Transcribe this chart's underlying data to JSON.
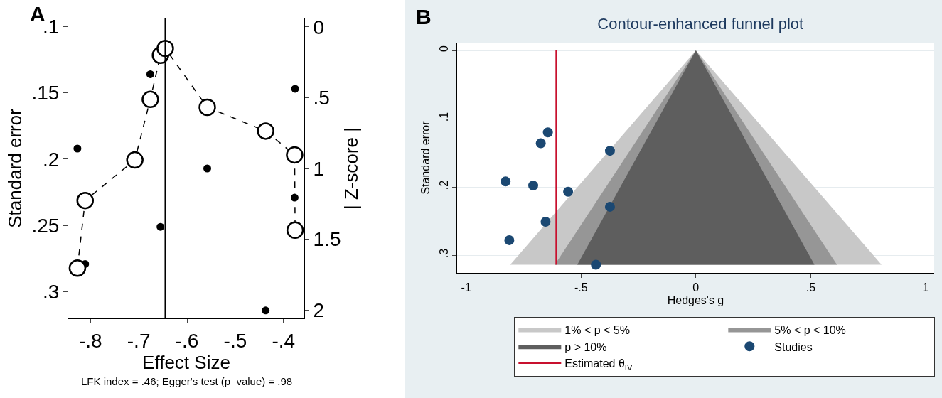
{
  "chart_data": [
    {
      "type": "scatter",
      "xlabel": "Effect Size",
      "ylabel": "Standard error",
      "y2label": "| Z-score |",
      "annotations": [
        "A",
        "LFK index = .46; Egger's test (p_value) = .98"
      ],
      "xlim": [
        -0.846,
        -0.357
      ],
      "xticks": [
        {
          "value": -0.8,
          "label": "-.8"
        },
        {
          "value": -0.7,
          "label": "-.7"
        },
        {
          "value": -0.6,
          "label": "-.6"
        },
        {
          "value": -0.5,
          "label": "-.5"
        },
        {
          "value": -0.4,
          "label": "-.4"
        }
      ],
      "ylim": [
        0.32,
        0.094
      ],
      "yticks": [
        {
          "value": 0.1,
          "label": ".1"
        },
        {
          "value": 0.15,
          "label": ".15"
        },
        {
          "value": 0.2,
          "label": ".2"
        },
        {
          "value": 0.25,
          "label": ".25"
        },
        {
          "value": 0.3,
          "label": ".3"
        }
      ],
      "y2lim": [
        2.06,
        -0.06
      ],
      "y2ticks": [
        0,
        {
          "value": 0.5,
          "label": ".5"
        },
        1,
        1.5,
        2
      ],
      "grid": false,
      "legend": false,
      "ref_lines": [
        {
          "axis": "x",
          "value": -0.645,
          "color": "#000000"
        }
      ],
      "series": [
        {
          "type": "scatter",
          "color": "#000000",
          "marker": "circle",
          "x": [
            -0.827,
            -0.676,
            -0.376,
            -0.558,
            -0.377,
            -0.655,
            -0.811,
            -0.437
          ],
          "values": [
            0.192,
            0.136,
            0.147,
            0.207,
            0.229,
            0.251,
            0.279,
            0.314
          ]
        },
        {
          "type": "line",
          "axis": "y2",
          "color": "#000000",
          "marker": "circle",
          "line_style": "dashed",
          "x": [
            -0.827,
            -0.811,
            -0.708,
            -0.676,
            -0.655,
            -0.645,
            -0.558,
            -0.437,
            -0.377,
            -0.376
          ],
          "values": [
            1.705,
            1.227,
            0.94,
            0.512,
            0.2,
            0.152,
            0.568,
            0.736,
            0.904,
            1.436
          ]
        }
      ]
    },
    {
      "type": "scatter",
      "title": "Contour-enhanced funnel plot",
      "xlabel": "Hedges's g",
      "ylabel": "Standard error",
      "annotations": [
        "B"
      ],
      "xlim": [
        -1.039,
        1.037
      ],
      "xticks": [
        -1,
        {
          "value": -0.5,
          "label": "-.5"
        },
        0,
        {
          "value": 0.5,
          "label": ".5"
        },
        1
      ],
      "ylim": [
        0.326,
        -0.0115
      ],
      "yticks": [
        0,
        {
          "value": 0.1,
          "label": ".1"
        },
        {
          "value": 0.2,
          "label": ".2"
        },
        {
          "value": 0.3,
          "label": ".3"
        }
      ],
      "grid": "y",
      "legend": "bottom",
      "series": [
        {
          "type": "area",
          "name": "1% < p < 5%",
          "color": "#c8c8c8",
          "x": [
            -0.808,
            0,
            0.808
          ],
          "values": [
            0.314,
            0,
            0.314
          ]
        },
        {
          "type": "area",
          "name": "5% < p < 10%",
          "color": "#969696",
          "x": [
            -0.614,
            0,
            0.614
          ],
          "values": [
            0.314,
            0,
            0.314
          ]
        },
        {
          "type": "area",
          "name": "p > 10%",
          "color": "#5e5e5e",
          "x": [
            -0.516,
            0,
            0.516
          ],
          "values": [
            0.314,
            0,
            0.314
          ]
        },
        {
          "type": "scatter",
          "name": "Studies",
          "color": "#1b4872",
          "marker": "circle",
          "x": [
            -0.644,
            -0.675,
            -0.374,
            -0.828,
            -0.708,
            -0.556,
            -0.374,
            -0.654,
            -0.812,
            -0.435
          ],
          "values": [
            0.12,
            0.136,
            0.147,
            0.192,
            0.198,
            0.207,
            0.229,
            0.251,
            0.278,
            0.314
          ]
        },
        {
          "type": "line",
          "name": "Estimated θ$_{IV}$",
          "color": "#c8102e",
          "marker": "none",
          "x": [
            -0.608,
            -0.608
          ],
          "values": [
            0,
            0.314
          ]
        }
      ]
    }
  ]
}
